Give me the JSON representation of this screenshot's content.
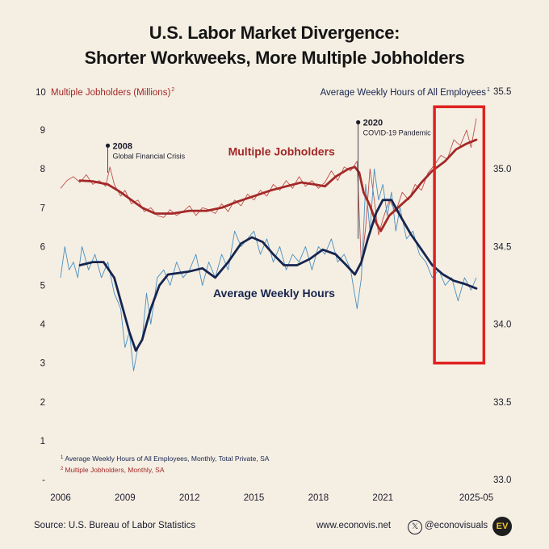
{
  "header": {
    "title_line1": "U.S. Labor Market Divergence:",
    "title_line2": "Shorter Workweeks, More Multiple Jobholders"
  },
  "footer": {
    "source": "Source: U.S. Bureau of Labor Statistics",
    "website": "www.econovis.net",
    "handle": "@econovisuals",
    "logo_text": "EV",
    "icons": [
      "x-logo-icon",
      "econovis-logo-icon"
    ]
  },
  "colors": {
    "background": "#f5efe3",
    "jobholders": "#a32828",
    "jobholders_raw": "#c0504d",
    "hours": "#16244f",
    "hours_raw": "#4a8fc0",
    "highlight_box": "#e02222",
    "grid": "#ddd5c6"
  },
  "chart_data": {
    "type": "line",
    "title": "U.S. Labor Market Divergence: Shorter Workweeks, More Multiple Jobholders",
    "left_axis": {
      "label": "Multiple Jobholders (Millions)",
      "label_superscript": "2",
      "range": [
        0,
        10
      ],
      "ticks": [
        "-",
        "1",
        "2",
        "3",
        "4",
        "5",
        "6",
        "7",
        "8",
        "9",
        "10"
      ]
    },
    "right_axis": {
      "label": "Average Weekly Hours of All Employees",
      "label_superscript": "1",
      "range": [
        33.0,
        35.5
      ],
      "ticks": [
        "33.0",
        "33.5",
        "34.0",
        "34.5",
        "35.0",
        "35.5"
      ]
    },
    "x_axis": {
      "range": [
        2006,
        2025.5
      ],
      "ticks": [
        "2006",
        "2009",
        "2012",
        "2015",
        "2018",
        "2021",
        "2025-05"
      ],
      "tick_positions": [
        2006,
        2009,
        2012,
        2015,
        2018,
        2021,
        2025.35
      ]
    },
    "grid": false,
    "series": [
      {
        "name": "Multiple Jobholders",
        "axis": "left",
        "smoothed": [
          [
            2006.9,
            7.7
          ],
          [
            2007.5,
            7.68
          ],
          [
            2008.2,
            7.6
          ],
          [
            2008.8,
            7.4
          ],
          [
            2009.3,
            7.2
          ],
          [
            2009.8,
            7.0
          ],
          [
            2010.4,
            6.85
          ],
          [
            2011.2,
            6.85
          ],
          [
            2012.0,
            6.92
          ],
          [
            2012.8,
            6.92
          ],
          [
            2013.5,
            7.0
          ],
          [
            2014.2,
            7.15
          ],
          [
            2015.0,
            7.3
          ],
          [
            2015.8,
            7.45
          ],
          [
            2016.5,
            7.55
          ],
          [
            2017.2,
            7.65
          ],
          [
            2017.8,
            7.6
          ],
          [
            2018.3,
            7.55
          ],
          [
            2018.8,
            7.8
          ],
          [
            2019.4,
            8.0
          ],
          [
            2019.7,
            8.05
          ],
          [
            2019.9,
            7.9
          ],
          [
            2020.1,
            7.4
          ],
          [
            2020.4,
            7.05
          ],
          [
            2020.7,
            6.6
          ],
          [
            2020.9,
            6.4
          ],
          [
            2021.3,
            6.8
          ],
          [
            2021.8,
            7.05
          ],
          [
            2022.3,
            7.3
          ],
          [
            2022.8,
            7.65
          ],
          [
            2023.3,
            7.95
          ],
          [
            2023.9,
            8.2
          ],
          [
            2024.4,
            8.5
          ],
          [
            2024.9,
            8.65
          ],
          [
            2025.35,
            8.75
          ]
        ],
        "raw": [
          [
            2006.0,
            7.5
          ],
          [
            2006.3,
            7.7
          ],
          [
            2006.6,
            7.8
          ],
          [
            2006.9,
            7.65
          ],
          [
            2007.2,
            7.85
          ],
          [
            2007.5,
            7.6
          ],
          [
            2007.8,
            7.7
          ],
          [
            2008.1,
            7.55
          ],
          [
            2008.3,
            8.05
          ],
          [
            2008.5,
            7.6
          ],
          [
            2008.8,
            7.3
          ],
          [
            2009.0,
            7.45
          ],
          [
            2009.3,
            7.1
          ],
          [
            2009.6,
            7.2
          ],
          [
            2009.9,
            6.9
          ],
          [
            2010.2,
            7.0
          ],
          [
            2010.5,
            6.8
          ],
          [
            2010.8,
            6.75
          ],
          [
            2011.1,
            6.95
          ],
          [
            2011.4,
            6.8
          ],
          [
            2011.7,
            6.9
          ],
          [
            2012.0,
            7.05
          ],
          [
            2012.3,
            6.8
          ],
          [
            2012.6,
            7.0
          ],
          [
            2012.9,
            6.95
          ],
          [
            2013.2,
            6.85
          ],
          [
            2013.5,
            7.1
          ],
          [
            2013.8,
            6.9
          ],
          [
            2014.1,
            7.2
          ],
          [
            2014.4,
            7.05
          ],
          [
            2014.7,
            7.35
          ],
          [
            2015.0,
            7.2
          ],
          [
            2015.3,
            7.45
          ],
          [
            2015.6,
            7.3
          ],
          [
            2015.9,
            7.6
          ],
          [
            2016.2,
            7.45
          ],
          [
            2016.5,
            7.7
          ],
          [
            2016.8,
            7.5
          ],
          [
            2017.1,
            7.8
          ],
          [
            2017.4,
            7.55
          ],
          [
            2017.7,
            7.7
          ],
          [
            2018.0,
            7.5
          ],
          [
            2018.3,
            7.65
          ],
          [
            2018.6,
            7.95
          ],
          [
            2018.9,
            7.7
          ],
          [
            2019.2,
            8.05
          ],
          [
            2019.5,
            7.95
          ],
          [
            2019.8,
            8.2
          ],
          [
            2020.0,
            5.5
          ],
          [
            2020.2,
            6.5
          ],
          [
            2020.4,
            8.0
          ],
          [
            2020.6,
            7.2
          ],
          [
            2020.8,
            6.3
          ],
          [
            2021.0,
            6.7
          ],
          [
            2021.3,
            7.2
          ],
          [
            2021.6,
            6.9
          ],
          [
            2021.9,
            7.4
          ],
          [
            2022.2,
            7.2
          ],
          [
            2022.5,
            7.6
          ],
          [
            2022.8,
            7.45
          ],
          [
            2023.1,
            7.9
          ],
          [
            2023.4,
            8.1
          ],
          [
            2023.7,
            8.35
          ],
          [
            2024.0,
            8.25
          ],
          [
            2024.3,
            8.75
          ],
          [
            2024.6,
            8.6
          ],
          [
            2024.9,
            9.0
          ],
          [
            2025.1,
            8.55
          ],
          [
            2025.35,
            9.3
          ]
        ]
      },
      {
        "name": "Average Weekly Hours",
        "axis": "right",
        "smoothed": [
          [
            2006.9,
            34.38
          ],
          [
            2007.5,
            34.4
          ],
          [
            2008.0,
            34.4
          ],
          [
            2008.5,
            34.3
          ],
          [
            2008.9,
            34.1
          ],
          [
            2009.2,
            33.95
          ],
          [
            2009.5,
            33.83
          ],
          [
            2009.8,
            33.9
          ],
          [
            2010.2,
            34.1
          ],
          [
            2010.6,
            34.25
          ],
          [
            2011.0,
            34.32
          ],
          [
            2011.5,
            34.33
          ],
          [
            2012.0,
            34.34
          ],
          [
            2012.6,
            34.36
          ],
          [
            2013.2,
            34.3
          ],
          [
            2013.8,
            34.4
          ],
          [
            2014.4,
            34.52
          ],
          [
            2014.9,
            34.56
          ],
          [
            2015.4,
            34.53
          ],
          [
            2015.9,
            34.45
          ],
          [
            2016.4,
            34.38
          ],
          [
            2017.0,
            34.38
          ],
          [
            2017.6,
            34.42
          ],
          [
            2018.2,
            34.48
          ],
          [
            2018.8,
            34.45
          ],
          [
            2019.3,
            34.38
          ],
          [
            2019.7,
            34.32
          ],
          [
            2020.0,
            34.4
          ],
          [
            2020.3,
            34.55
          ],
          [
            2020.7,
            34.72
          ],
          [
            2021.0,
            34.8
          ],
          [
            2021.4,
            34.8
          ],
          [
            2021.8,
            34.7
          ],
          [
            2022.3,
            34.58
          ],
          [
            2022.8,
            34.48
          ],
          [
            2023.3,
            34.38
          ],
          [
            2023.8,
            34.32
          ],
          [
            2024.3,
            34.28
          ],
          [
            2024.8,
            34.26
          ],
          [
            2025.35,
            34.23
          ]
        ],
        "raw": [
          [
            2006.0,
            34.3
          ],
          [
            2006.2,
            34.5
          ],
          [
            2006.4,
            34.35
          ],
          [
            2006.6,
            34.4
          ],
          [
            2006.8,
            34.3
          ],
          [
            2007.0,
            34.5
          ],
          [
            2007.3,
            34.35
          ],
          [
            2007.6,
            34.45
          ],
          [
            2007.9,
            34.3
          ],
          [
            2008.2,
            34.4
          ],
          [
            2008.5,
            34.2
          ],
          [
            2008.8,
            34.1
          ],
          [
            2009.0,
            33.85
          ],
          [
            2009.2,
            33.95
          ],
          [
            2009.4,
            33.7
          ],
          [
            2009.6,
            33.85
          ],
          [
            2009.8,
            33.9
          ],
          [
            2010.0,
            34.2
          ],
          [
            2010.2,
            34.0
          ],
          [
            2010.5,
            34.3
          ],
          [
            2010.8,
            34.35
          ],
          [
            2011.1,
            34.25
          ],
          [
            2011.4,
            34.4
          ],
          [
            2011.7,
            34.3
          ],
          [
            2012.0,
            34.35
          ],
          [
            2012.3,
            34.45
          ],
          [
            2012.6,
            34.25
          ],
          [
            2012.9,
            34.4
          ],
          [
            2013.2,
            34.3
          ],
          [
            2013.5,
            34.45
          ],
          [
            2013.8,
            34.35
          ],
          [
            2014.1,
            34.6
          ],
          [
            2014.4,
            34.5
          ],
          [
            2014.7,
            34.55
          ],
          [
            2015.0,
            34.6
          ],
          [
            2015.3,
            34.45
          ],
          [
            2015.6,
            34.55
          ],
          [
            2015.9,
            34.4
          ],
          [
            2016.2,
            34.5
          ],
          [
            2016.5,
            34.35
          ],
          [
            2016.8,
            34.45
          ],
          [
            2017.1,
            34.4
          ],
          [
            2017.4,
            34.5
          ],
          [
            2017.7,
            34.35
          ],
          [
            2018.0,
            34.5
          ],
          [
            2018.3,
            34.45
          ],
          [
            2018.6,
            34.55
          ],
          [
            2018.9,
            34.4
          ],
          [
            2019.2,
            34.45
          ],
          [
            2019.5,
            34.35
          ],
          [
            2019.8,
            34.1
          ],
          [
            2020.0,
            34.3
          ],
          [
            2020.2,
            34.9
          ],
          [
            2020.4,
            34.6
          ],
          [
            2020.6,
            35.0
          ],
          [
            2020.8,
            34.8
          ],
          [
            2021.0,
            34.9
          ],
          [
            2021.2,
            34.7
          ],
          [
            2021.4,
            34.85
          ],
          [
            2021.6,
            34.6
          ],
          [
            2021.8,
            34.75
          ],
          [
            2022.1,
            34.55
          ],
          [
            2022.4,
            34.6
          ],
          [
            2022.7,
            34.45
          ],
          [
            2023.0,
            34.4
          ],
          [
            2023.3,
            34.3
          ],
          [
            2023.6,
            34.35
          ],
          [
            2023.9,
            34.25
          ],
          [
            2024.2,
            34.3
          ],
          [
            2024.5,
            34.15
          ],
          [
            2024.8,
            34.3
          ],
          [
            2025.1,
            34.22
          ],
          [
            2025.35,
            34.3
          ]
        ]
      }
    ],
    "series_labels": [
      {
        "text": "Multiple Jobholders",
        "series": "Multiple Jobholders"
      },
      {
        "text": "Average Weekly Hours",
        "series": "Average Weekly Hours"
      }
    ],
    "annotations": [
      {
        "year": "2008",
        "text": "Global Financial Crisis",
        "x": 2008.2,
        "y_left": 8.6
      },
      {
        "year": "2020",
        "text": "COVID-19 Pandemic",
        "x": 2019.85,
        "y_left": 9.2
      }
    ],
    "highlight_box": {
      "x_range": [
        2023.4,
        2025.7
      ],
      "right_axis_range": [
        33.75,
        35.4
      ]
    },
    "footnotes": [
      {
        "mark": "1",
        "text": "Average Weekly Hours of All Employees, Monthly, Total Private, SA"
      },
      {
        "mark": "2",
        "text": "Multiple Jobholders, Monthly, SA"
      }
    ]
  }
}
